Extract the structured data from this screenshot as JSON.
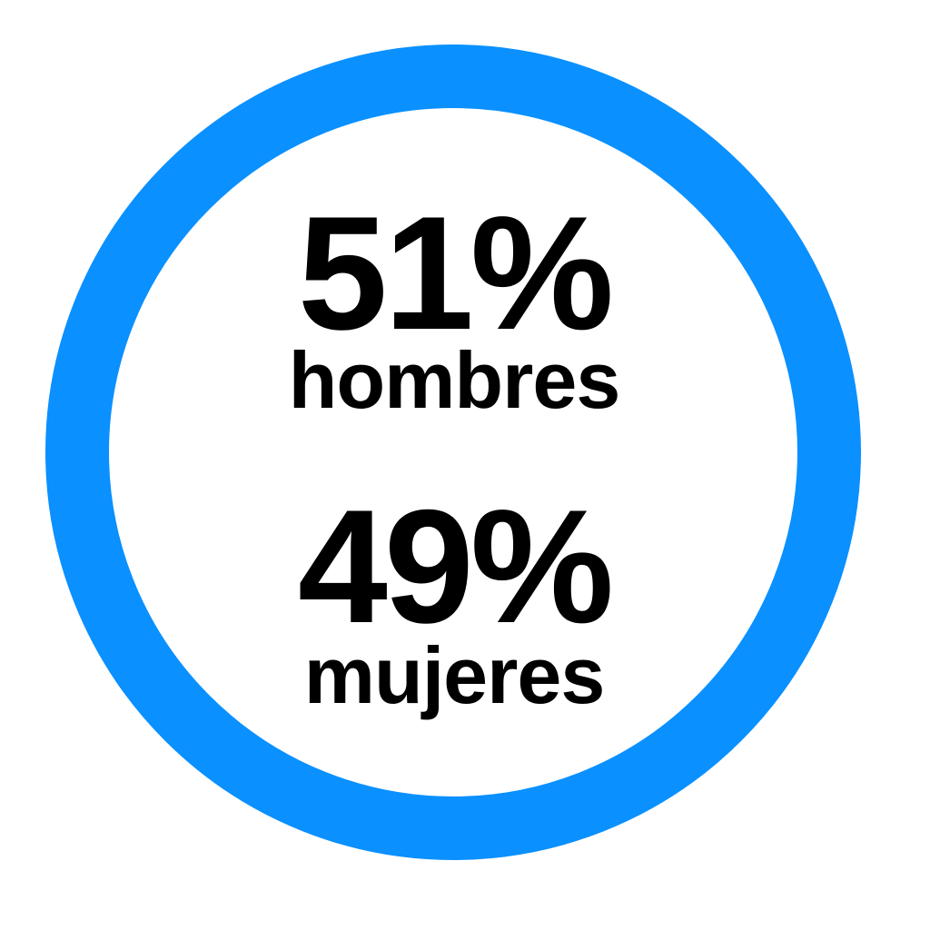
{
  "colors": {
    "ring": "#0A90FF",
    "text": "#000000",
    "background": "#FFFFFF"
  },
  "stats": [
    {
      "value": "51%",
      "label": "hombres"
    },
    {
      "value": "49%",
      "label": "mujeres"
    }
  ]
}
